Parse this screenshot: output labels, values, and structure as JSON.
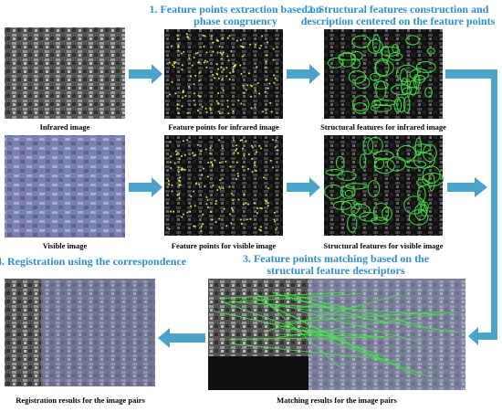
{
  "steps": [
    {
      "lines": [
        "1. Feature points extraction based on",
        "phase congruency"
      ]
    },
    {
      "lines": [
        "2. Structural features construction and",
        "description centered on the feature points"
      ]
    },
    {
      "lines": [
        "3. Feature points matching based on the",
        "structural feature descriptors"
      ]
    },
    {
      "lines": [
        "4. Registration using the correspondence"
      ]
    }
  ],
  "images": [
    {
      "caption": "Infrared image"
    },
    {
      "caption": "Feature points for infrared image"
    },
    {
      "caption": "Structural features for infrared image"
    },
    {
      "caption": "Visible image"
    },
    {
      "caption": "Feature points for visible image"
    },
    {
      "caption": "Structural features for visible image"
    },
    {
      "caption": "Registration results for the image pairs"
    },
    {
      "caption": "Matching results for the image pairs"
    }
  ]
}
